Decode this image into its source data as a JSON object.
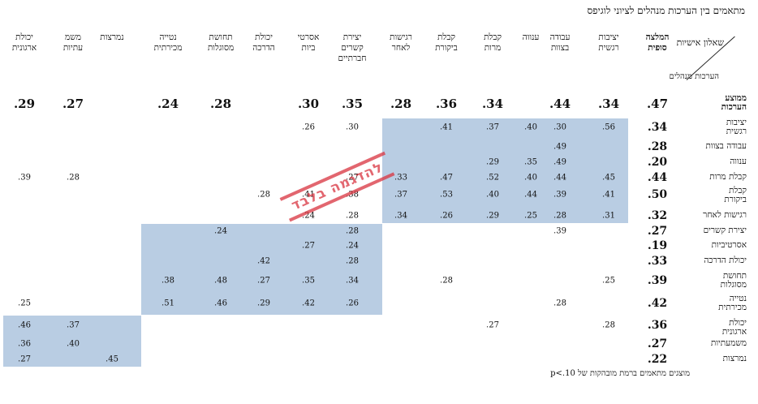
{
  "title": "מתאמים בין הערכות מנהלים לציוני לוגיפס",
  "corner": {
    "top": "שאלון\nאישיות",
    "bottom": "הערכות\nמנהלים"
  },
  "columns": [
    "המלצה\nסופית",
    "יציבות\nרגשית",
    "עבודה\nבצוות",
    "ענווה",
    "קבלת\nמרות",
    "קבלת\nביקורת",
    "רגישות\nלאחר",
    "יצירת\nקשרים\nחברתיים",
    "אסרטי\nביות",
    "יכולת\nהדרכה",
    "תחושת\nמסוגלות",
    "נטייה\nמכירתית",
    "נמרצות",
    "משמ\nעתיות",
    "יכולת\nארגונית"
  ],
  "avg_row": {
    "label": "ממוצע\nהערכות",
    "values": [
      ".47",
      ".34",
      ".44",
      "",
      ".34",
      ".36",
      ".28",
      ".35",
      ".30",
      "",
      ".28",
      ".24",
      "",
      ".27",
      ".29"
    ]
  },
  "rows": [
    {
      "label": "יציבות\nרגשית",
      "values": [
        ".34",
        ".56",
        ".30",
        ".40",
        ".37",
        ".41",
        "",
        ".30",
        ".26",
        "",
        "",
        "",
        "",
        "",
        ""
      ]
    },
    {
      "label": "עבודה בצוות",
      "values": [
        ".28",
        "",
        ".49",
        "",
        "",
        "",
        "",
        "",
        "",
        "",
        "",
        "",
        "",
        "",
        ""
      ]
    },
    {
      "label": "ענווה",
      "values": [
        ".20",
        "",
        ".49",
        ".35",
        ".29",
        "",
        "",
        "",
        "",
        "",
        "",
        "",
        "",
        "",
        ""
      ]
    },
    {
      "label": "קבלת מרות",
      "values": [
        ".44",
        ".45",
        ".44",
        ".40",
        ".52",
        ".47",
        ".33",
        ".27",
        "",
        "",
        "",
        "",
        "",
        ".28",
        ".39"
      ]
    },
    {
      "label": "קבלת\nביקורת",
      "values": [
        ".50",
        ".41",
        ".39",
        ".44",
        ".40",
        ".53",
        ".37",
        ".38",
        ".41",
        ".28",
        "",
        "",
        "",
        "",
        ""
      ]
    },
    {
      "label": "רגישות לאחר",
      "values": [
        ".32",
        ".31",
        ".28",
        ".25",
        ".29",
        ".26",
        ".34",
        ".28",
        ".24",
        "",
        "",
        "",
        "",
        "",
        ""
      ]
    },
    {
      "label": "יצירת קשרים",
      "values": [
        ".27",
        "",
        ".39",
        "",
        "",
        "",
        "",
        ".28",
        "",
        "",
        ".24",
        "",
        "",
        "",
        ""
      ]
    },
    {
      "label": "אסרטיביות",
      "values": [
        ".19",
        "",
        "",
        "",
        "",
        "",
        "",
        ".24",
        ".27",
        "",
        "",
        "",
        "",
        "",
        ""
      ]
    },
    {
      "label": "יכולת הדרכה",
      "values": [
        ".33",
        "",
        "",
        "",
        "",
        "",
        "",
        ".28",
        "",
        ".42",
        "",
        "",
        "",
        "",
        ""
      ]
    },
    {
      "label": "תחושת\nמסוגלות",
      "values": [
        ".39",
        ".25",
        "",
        "",
        "",
        ".28",
        "",
        ".34",
        ".35",
        ".27",
        ".48",
        ".38",
        "",
        "",
        ""
      ]
    },
    {
      "label": "נטייה\nמכירתית",
      "values": [
        ".42",
        "",
        ".28",
        "",
        "",
        "",
        "",
        ".26",
        ".42",
        ".29",
        ".46",
        ".51",
        "",
        "",
        ".25"
      ]
    },
    {
      "label": "יכולת\nארגונית",
      "values": [
        ".36",
        ".28",
        "",
        "",
        ".27",
        "",
        "",
        "",
        "",
        "",
        "",
        "",
        "",
        ".37",
        ".46"
      ]
    },
    {
      "label": "משמעתיות",
      "values": [
        ".27",
        "",
        "",
        "",
        "",
        "",
        "",
        "",
        "",
        "",
        "",
        "",
        "",
        ".40",
        ".36"
      ]
    },
    {
      "label": "נמרצות",
      "values": [
        ".22",
        "",
        "",
        "",
        "",
        "",
        "",
        "",
        "",
        "",
        "",
        "",
        ".45",
        "",
        ".27"
      ]
    }
  ],
  "footnote": "מוצגים מתאמים ברמת מובהקות של p<.10",
  "watermark": "להדגמה בלבד",
  "colors": {
    "shade": "#b9cde3",
    "watermark": "#d9343f"
  }
}
